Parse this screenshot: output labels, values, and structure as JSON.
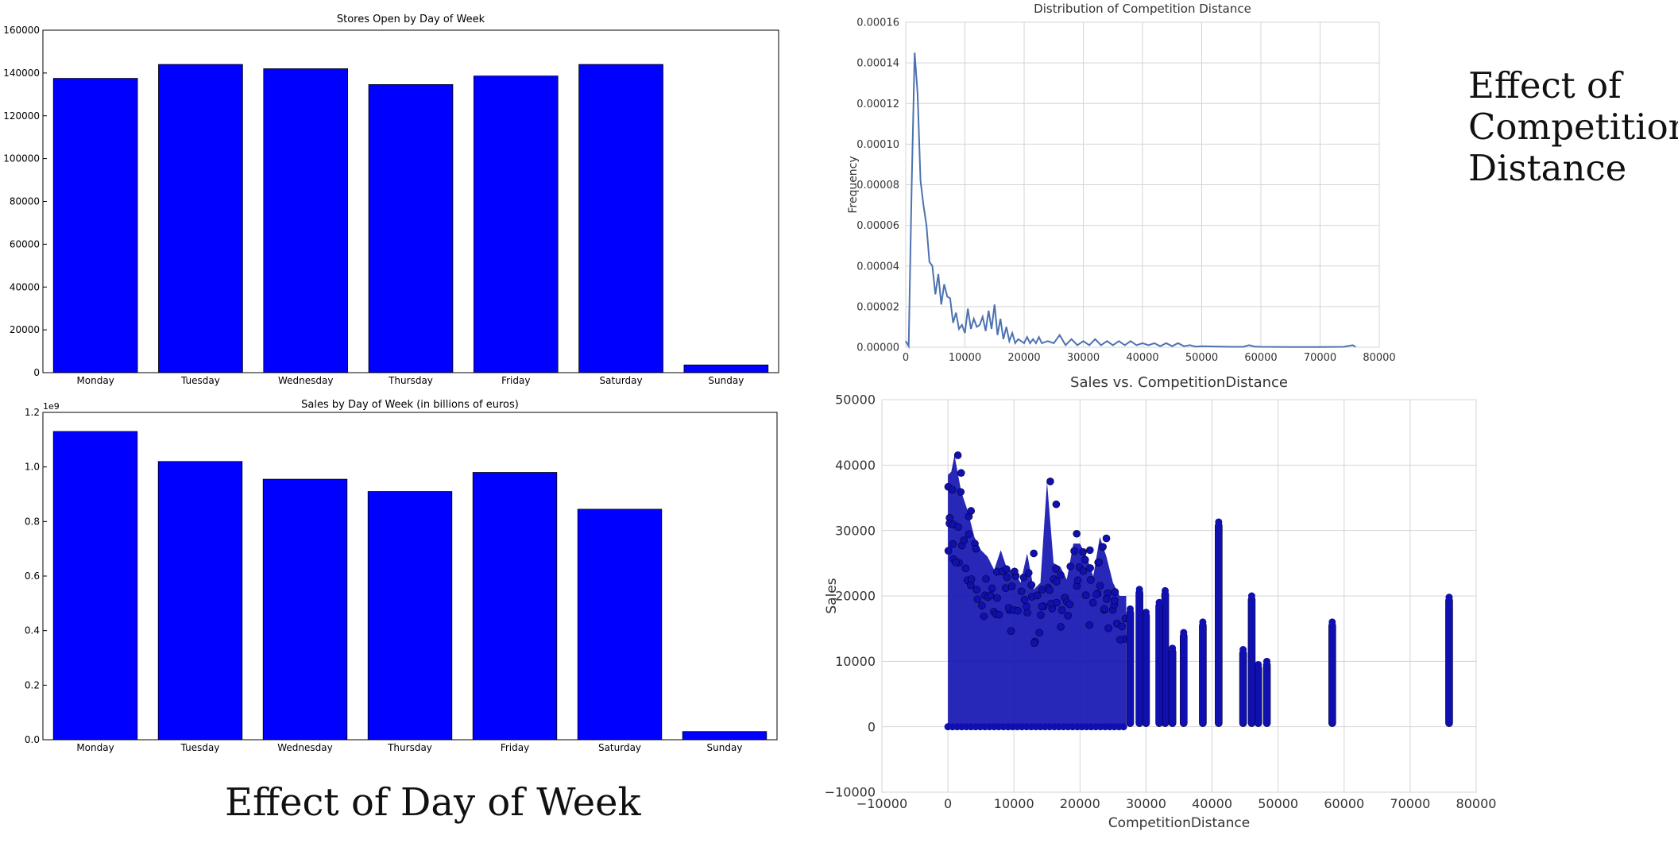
{
  "captions": {
    "day_of_week": "Effect of Day of Week",
    "competition_line1": "Effect of",
    "competition_line2": "Competition",
    "competition_line3": "Distance"
  },
  "colors": {
    "bar": "#0000ff",
    "kde_line": "#4c72b0",
    "scatter": "#1010b0",
    "grid": "#d4d4d4",
    "axis": "#000000"
  },
  "chart_data": [
    {
      "id": "stores",
      "type": "bar",
      "title": "Stores Open by Day of Week",
      "xlabel": "",
      "ylabel": "",
      "categories": [
        "Monday",
        "Tuesday",
        "Wednesday",
        "Thursday",
        "Friday",
        "Saturday",
        "Sunday"
      ],
      "values": [
        137500,
        144000,
        142000,
        134600,
        138600,
        144000,
        3600
      ],
      "ylim": [
        0,
        160000
      ],
      "yticks": [
        0,
        20000,
        40000,
        60000,
        80000,
        100000,
        120000,
        140000,
        160000
      ],
      "ytick_labels": [
        "0",
        "20000",
        "40000",
        "60000",
        "80000",
        "100000",
        "120000",
        "140000",
        "160000"
      ],
      "grid": false,
      "bar_color": "#0000ff"
    },
    {
      "id": "sales",
      "type": "bar",
      "title": "Sales by Day of Week (in billions of euros)",
      "xlabel": "",
      "ylabel": "",
      "offset_label": "1e9",
      "categories": [
        "Monday",
        "Tuesday",
        "Wednesday",
        "Thursday",
        "Friday",
        "Saturday",
        "Sunday"
      ],
      "values": [
        1.13,
        1.02,
        0.955,
        0.91,
        0.98,
        0.845,
        0.03
      ],
      "ylim": [
        0,
        1.2
      ],
      "yticks": [
        0,
        0.2,
        0.4,
        0.6,
        0.8,
        1.0,
        1.2
      ],
      "ytick_labels": [
        "0.0",
        "0.2",
        "0.4",
        "0.6",
        "0.8",
        "1.0",
        "1.2"
      ],
      "grid": false,
      "bar_color": "#0000ff"
    },
    {
      "id": "kde",
      "type": "line",
      "title": "Distribution of Competition Distance",
      "xlabel": "",
      "ylabel": "Frequency",
      "xlim": [
        0,
        80000
      ],
      "ylim": [
        0,
        0.00016
      ],
      "xticks": [
        0,
        10000,
        20000,
        30000,
        40000,
        50000,
        60000,
        70000,
        80000
      ],
      "xtick_labels": [
        "0",
        "10000",
        "20000",
        "30000",
        "40000",
        "50000",
        "60000",
        "70000",
        "80000"
      ],
      "yticks": [
        0,
        2e-05,
        4e-05,
        6e-05,
        8e-05,
        0.0001,
        0.00012,
        0.00014,
        0.00016
      ],
      "ytick_labels": [
        "0.00000",
        "0.00002",
        "0.00004",
        "0.00006",
        "0.00008",
        "0.00010",
        "0.00012",
        "0.00014",
        "0.00016"
      ],
      "grid": true,
      "x": [
        0,
        500,
        1000,
        1500,
        2000,
        2500,
        3000,
        3500,
        4000,
        4500,
        5000,
        5500,
        6000,
        6500,
        7000,
        7500,
        8000,
        8500,
        9000,
        9500,
        10000,
        10500,
        11000,
        11500,
        12000,
        12500,
        13000,
        13500,
        14000,
        14500,
        15000,
        15500,
        16000,
        16500,
        17000,
        17500,
        18000,
        18500,
        19000,
        19500,
        20000,
        20500,
        21000,
        21500,
        22000,
        22500,
        23000,
        24000,
        25000,
        26000,
        27000,
        28000,
        29000,
        30000,
        31000,
        32000,
        33000,
        34000,
        35000,
        36000,
        37000,
        38000,
        39000,
        40000,
        41000,
        42000,
        43000,
        44000,
        45000,
        46000,
        47000,
        48000,
        49000,
        50000,
        55000,
        57000,
        58000,
        59000,
        60000,
        65000,
        70000,
        74000,
        75500,
        76000
      ],
      "series": [
        {
          "values": [
            3e-06,
            5e-07,
            8e-05,
            0.000145,
            0.000125,
            8.2e-05,
            7e-05,
            6e-05,
            4.2e-05,
            4e-05,
            2.6e-05,
            3.6e-05,
            2.1e-05,
            3.1e-05,
            2.5e-05,
            2.4e-05,
            1.2e-05,
            1.7e-05,
            9e-06,
            1.1e-05,
            7e-06,
            1.9e-05,
            9e-06,
            1.4e-05,
            1e-05,
            1.1e-05,
            1.5e-05,
            8e-06,
            1.8e-05,
            9e-06,
            2.1e-05,
            6e-06,
            1.4e-05,
            4e-06,
            1e-05,
            3e-06,
            7e-06,
            2e-06,
            4e-06,
            3e-06,
            2e-06,
            5e-06,
            2e-06,
            4e-06,
            2e-06,
            5e-06,
            2e-06,
            3e-06,
            2e-06,
            6e-06,
            1e-06,
            4e-06,
            1e-06,
            3e-06,
            1e-06,
            4e-06,
            1e-06,
            3e-06,
            1e-06,
            3e-06,
            1e-06,
            3e-06,
            1e-06,
            2e-06,
            1e-06,
            2e-06,
            5e-07,
            2e-06,
            5e-07,
            2e-06,
            5e-07,
            1e-06,
            3e-07,
            5e-07,
            2e-07,
            2e-07,
            1e-06,
            3e-07,
            2e-07,
            1e-07,
            1e-07,
            2e-07,
            1e-06,
            2e-07
          ]
        }
      ],
      "line_color": "#4c72b0"
    },
    {
      "id": "scatter",
      "type": "scatter",
      "title": "Sales vs. CompetitionDistance",
      "xlabel": "CompetitionDistance",
      "ylabel": "Sales",
      "xlim": [
        -10000,
        80000
      ],
      "ylim": [
        -10000,
        50000
      ],
      "xticks": [
        -10000,
        0,
        10000,
        20000,
        30000,
        40000,
        50000,
        60000,
        70000,
        80000
      ],
      "xtick_labels": [
        "−10000",
        "0",
        "10000",
        "20000",
        "30000",
        "40000",
        "50000",
        "60000",
        "70000",
        "80000"
      ],
      "yticks": [
        -10000,
        0,
        10000,
        20000,
        30000,
        40000,
        50000
      ],
      "ytick_labels": [
        "−10000",
        "0",
        "10000",
        "20000",
        "30000",
        "40000",
        "50000"
      ],
      "grid": true,
      "point_color": "#1010b0",
      "columns": [
        {
          "x": 58200,
          "ymin": 0,
          "ymax": 16000
        },
        {
          "x": 75900,
          "ymin": 0,
          "ymax": 19800
        },
        {
          "x": 48300,
          "ymin": 0,
          "ymax": 10000
        },
        {
          "x": 47000,
          "ymin": 0,
          "ymax": 9500
        },
        {
          "x": 46000,
          "ymin": 0,
          "ymax": 20000
        },
        {
          "x": 44700,
          "ymin": 0,
          "ymax": 11800
        },
        {
          "x": 41000,
          "ymin": 0,
          "ymax": 31300
        },
        {
          "x": 38600,
          "ymin": 0,
          "ymax": 16000
        },
        {
          "x": 35700,
          "ymin": 0,
          "ymax": 14400
        },
        {
          "x": 34000,
          "ymin": 0,
          "ymax": 12000
        },
        {
          "x": 32900,
          "ymin": 0,
          "ymax": 20800
        },
        {
          "x": 32000,
          "ymin": 0,
          "ymax": 19000
        },
        {
          "x": 30000,
          "ymin": 0,
          "ymax": 17500
        },
        {
          "x": 29000,
          "ymin": 0,
          "ymax": 21000
        },
        {
          "x": 27600,
          "ymin": 0,
          "ymax": 18000
        }
      ],
      "dense_region": {
        "xmin": 0,
        "xmax": 27000,
        "ymin": 0
      },
      "envelope": {
        "x": [
          0,
          500,
          1000,
          2000,
          3000,
          4000,
          5000,
          6000,
          7000,
          8000,
          9000,
          10000,
          11000,
          12000,
          13000,
          14000,
          15000,
          16000,
          17000,
          18000,
          19000,
          20000,
          21000,
          22000,
          23000,
          24000,
          25000,
          26000,
          27000
        ],
        "y": [
          38500,
          39000,
          41500,
          36000,
          33000,
          29000,
          27000,
          26000,
          24000,
          27000,
          24000,
          24000,
          22000,
          26500,
          21000,
          22000,
          37500,
          25000,
          24500,
          22500,
          28000,
          28000,
          26000,
          23000,
          29000,
          26000,
          22000,
          20000,
          20000
        ]
      },
      "outliers": [
        {
          "x": 1500,
          "y": 41500
        },
        {
          "x": 15500,
          "y": 37500
        },
        {
          "x": 16400,
          "y": 34000
        },
        {
          "x": 2000,
          "y": 38800
        },
        {
          "x": 3500,
          "y": 33000
        },
        {
          "x": 19500,
          "y": 29500
        },
        {
          "x": 24000,
          "y": 28800
        },
        {
          "x": 21500,
          "y": 27000
        },
        {
          "x": 13000,
          "y": 26500
        }
      ]
    }
  ]
}
